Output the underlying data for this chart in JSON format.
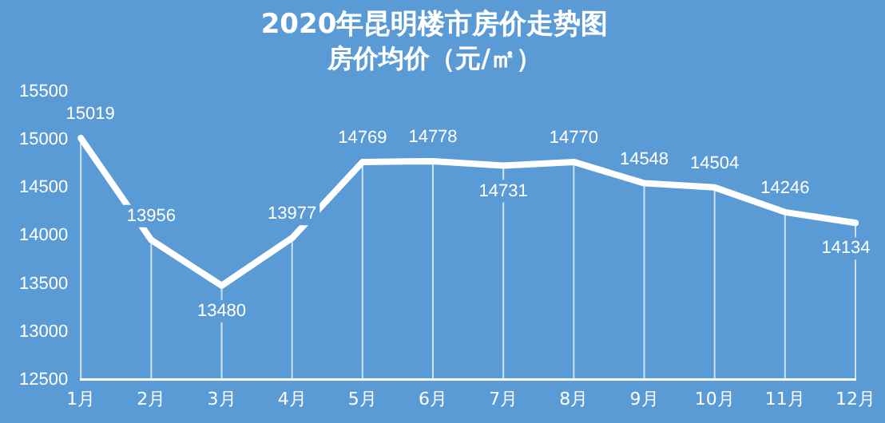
{
  "chart_data": {
    "type": "line",
    "title": "2020年昆明楼市房价走势图",
    "subtitle": "房价均价（元/㎡）",
    "categories": [
      "1月",
      "2月",
      "3月",
      "4月",
      "5月",
      "6月",
      "7月",
      "8月",
      "9月",
      "10月",
      "11月",
      "12月"
    ],
    "series": [
      {
        "color": "#ffffff",
        "values": [
          15019,
          13956,
          13480,
          13977,
          14769,
          14778,
          14731,
          14770,
          14548,
          14504,
          14246,
          14134
        ]
      }
    ],
    "ylim": [
      12500,
      15500
    ],
    "yticks": [
      12500,
      13000,
      13500,
      14000,
      14500,
      15000,
      15500
    ],
    "data_labels": true,
    "grid": "x",
    "legend": false,
    "marker": "none",
    "line_style": "solid"
  }
}
